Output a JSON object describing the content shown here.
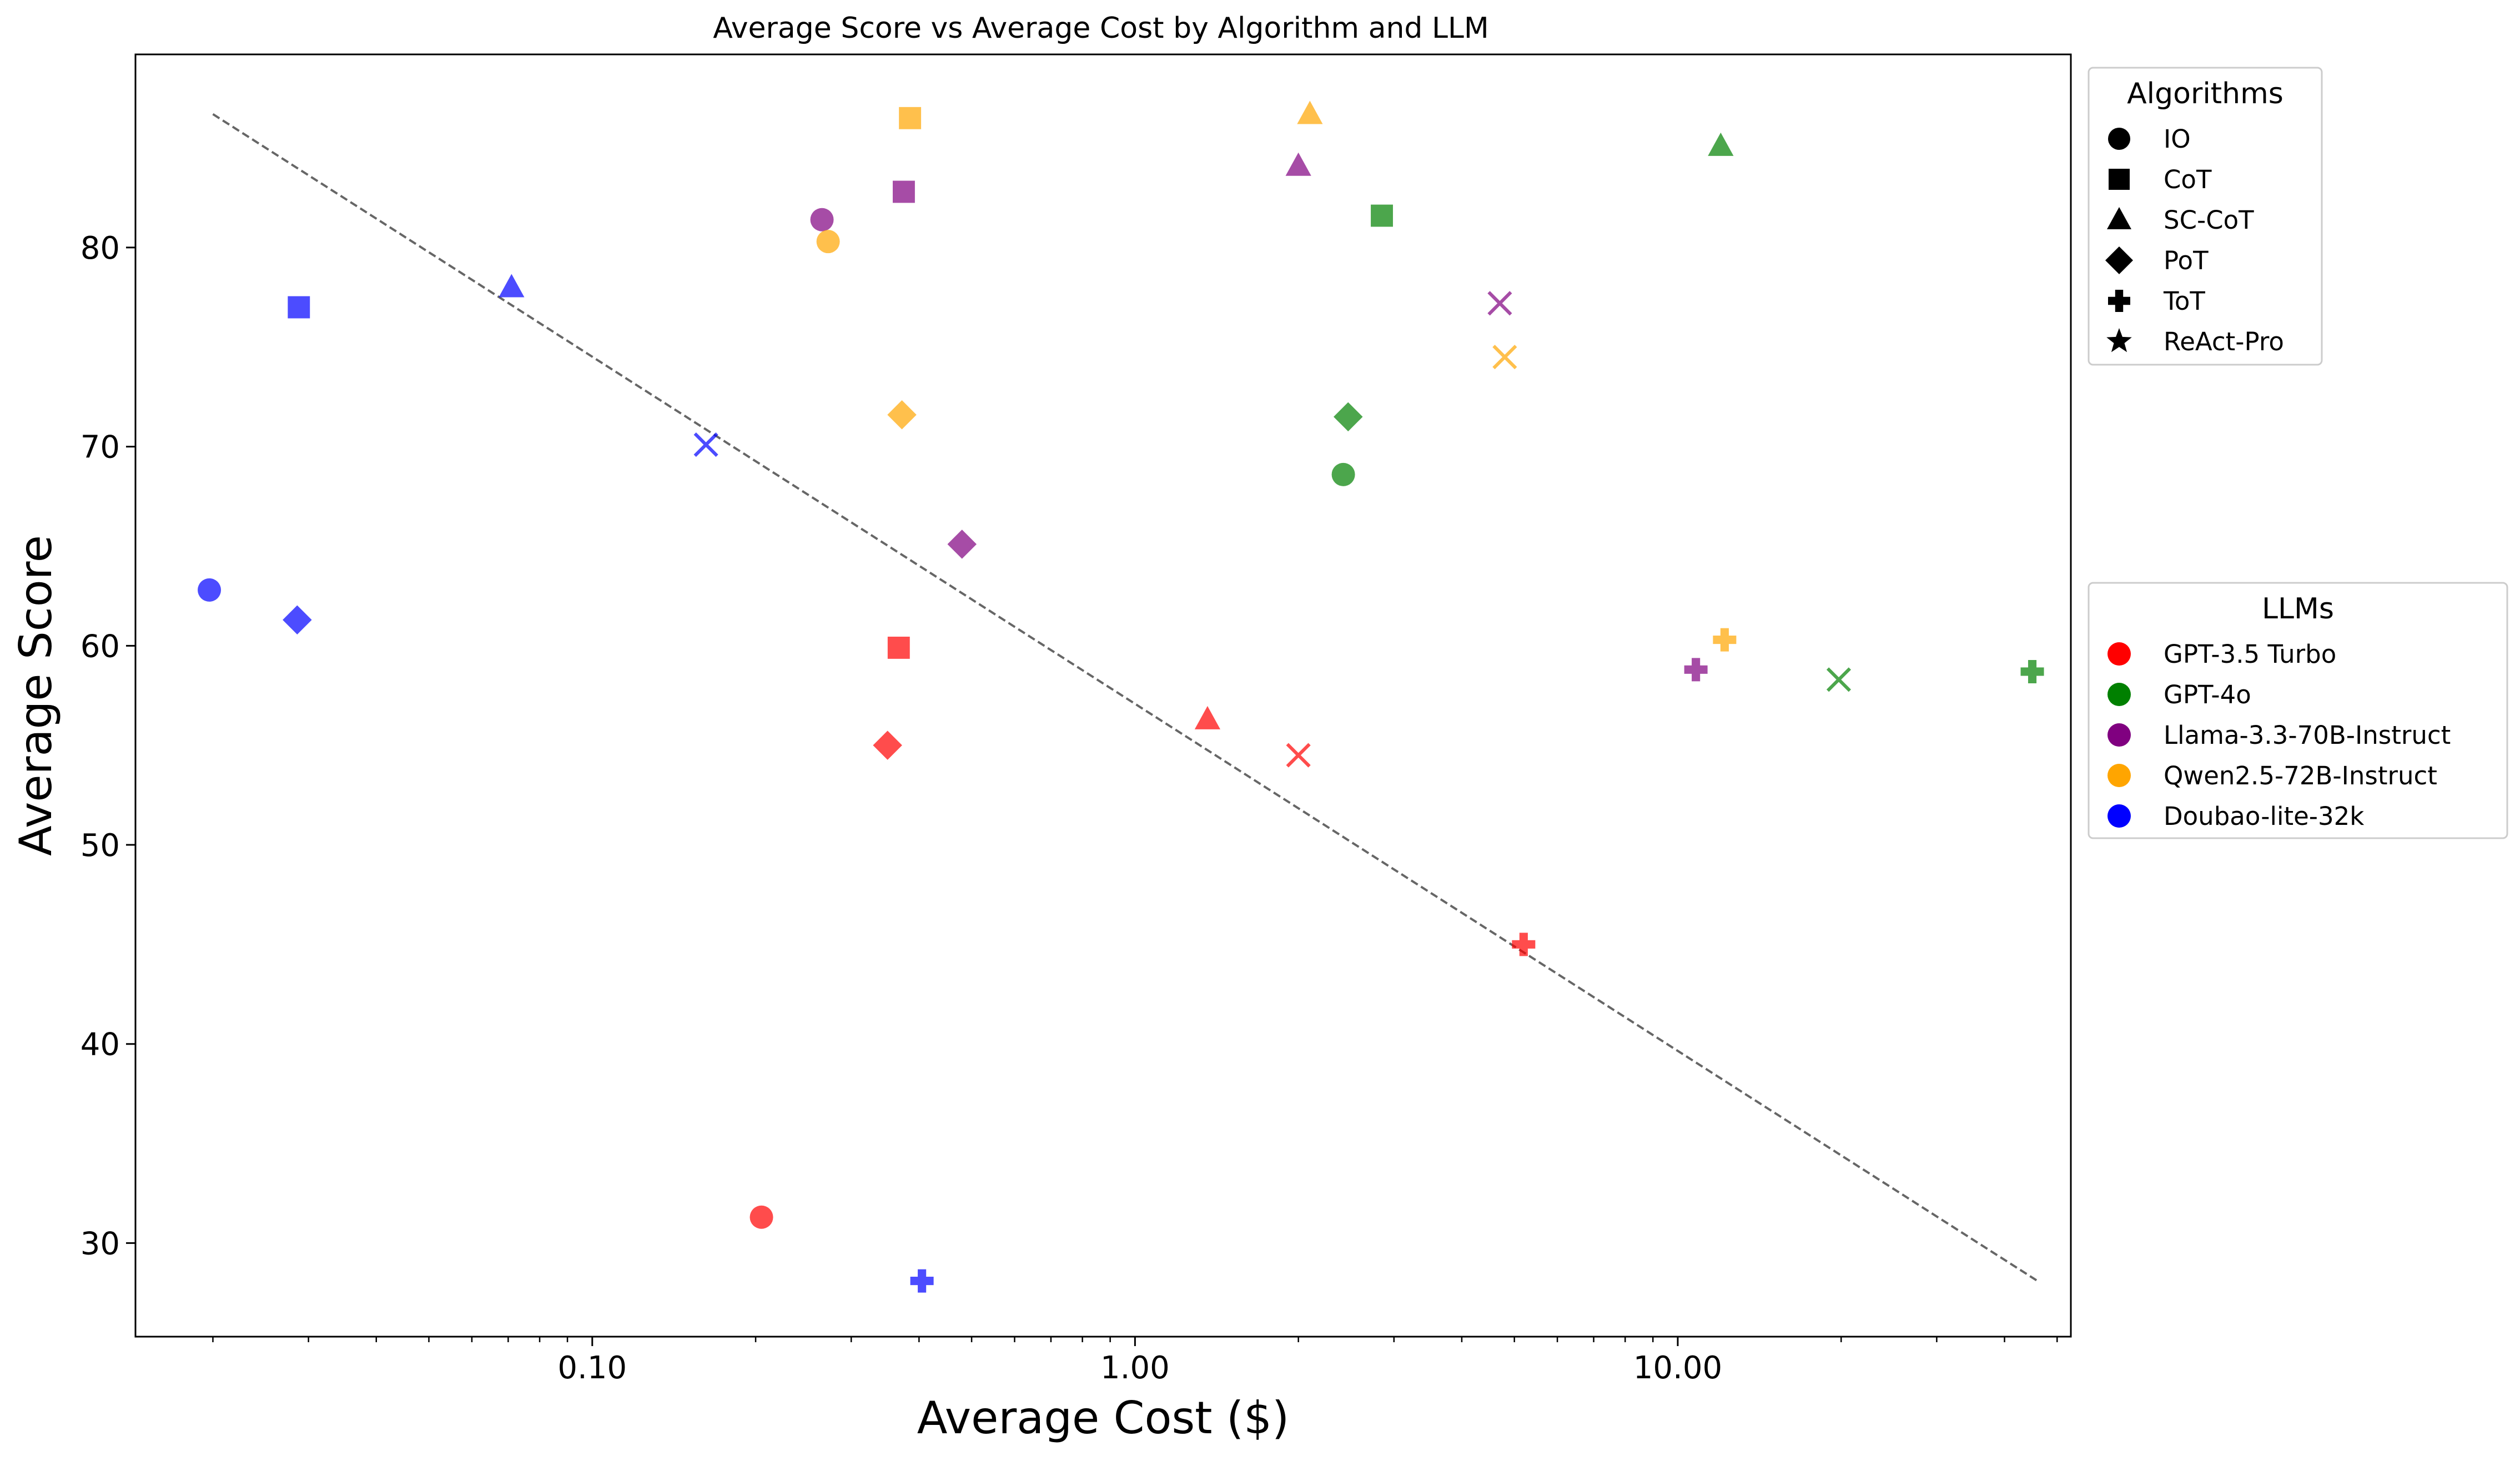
{
  "chart_data": {
    "type": "scatter",
    "title": "Average Score vs Average Cost by Algorithm and LLM",
    "xlabel": "Average Cost ($)",
    "ylabel": "Average Score",
    "xscale": "log",
    "xlim": [
      0.0144,
      53
    ],
    "ylim": [
      25.3,
      89.7
    ],
    "xticks": [
      {
        "value": 0.1,
        "label": "0.10"
      },
      {
        "value": 1,
        "label": "1.00"
      },
      {
        "value": 10,
        "label": "10.00"
      }
    ],
    "yticks": [
      30,
      40,
      50,
      60,
      70,
      80
    ],
    "grid": false,
    "legends": {
      "algorithms": {
        "title": "Algorithms",
        "placement": "top-right outside plot",
        "entries": [
          {
            "label": "IO",
            "marker": "circle"
          },
          {
            "label": "CoT",
            "marker": "square"
          },
          {
            "label": "SC-CoT",
            "marker": "triangle"
          },
          {
            "label": "PoT",
            "marker": "diamond"
          },
          {
            "label": "ToT",
            "marker": "plus"
          },
          {
            "label": "ReAct-Pro",
            "marker": "star"
          }
        ]
      },
      "llms": {
        "title": "LLMs",
        "placement": "middle-right outside plot",
        "entries": [
          {
            "label": "GPT-3.5 Turbo",
            "color": "#ff0000"
          },
          {
            "label": "GPT-4o",
            "color": "#008000"
          },
          {
            "label": "Llama-3.3-70B-Instruct",
            "color": "#800080"
          },
          {
            "label": "Qwen2.5-72B-Instruct",
            "color": "#ffa500"
          },
          {
            "label": "Doubao-lite-32k",
            "color": "#0000ff"
          }
        ]
      }
    },
    "trendline": {
      "style": "dashed",
      "color": "#666666",
      "points": [
        [
          0.02,
          86.7
        ],
        [
          46,
          28.1
        ]
      ]
    },
    "series": [
      {
        "llm": "GPT-3.5 Turbo",
        "color": "#ff0000",
        "points": [
          {
            "algorithm": "IO",
            "marker": "circle",
            "x": 0.205,
            "y": 31.3
          },
          {
            "algorithm": "CoT",
            "marker": "square",
            "x": 0.367,
            "y": 59.9
          },
          {
            "algorithm": "SC-CoT",
            "marker": "triangle",
            "x": 1.36,
            "y": 56.3
          },
          {
            "algorithm": "PoT",
            "marker": "diamond",
            "x": 0.35,
            "y": 55.0
          },
          {
            "algorithm": "ToT",
            "marker": "plus",
            "x": 5.2,
            "y": 45.0
          },
          {
            "algorithm": "ReAct-Pro",
            "marker": "x",
            "x": 2.0,
            "y": 54.5
          }
        ]
      },
      {
        "llm": "GPT-4o",
        "color": "#008000",
        "points": [
          {
            "algorithm": "IO",
            "marker": "circle",
            "x": 2.42,
            "y": 68.6
          },
          {
            "algorithm": "CoT",
            "marker": "square",
            "x": 2.85,
            "y": 81.6
          },
          {
            "algorithm": "SC-CoT",
            "marker": "triangle",
            "x": 12.0,
            "y": 85.1
          },
          {
            "algorithm": "PoT",
            "marker": "diamond",
            "x": 2.47,
            "y": 71.5
          },
          {
            "algorithm": "ToT",
            "marker": "plus",
            "x": 45.0,
            "y": 58.7
          },
          {
            "algorithm": "ReAct-Pro",
            "marker": "x",
            "x": 19.8,
            "y": 58.3
          }
        ]
      },
      {
        "llm": "Llama-3.3-70B-Instruct",
        "color": "#800080",
        "points": [
          {
            "algorithm": "IO",
            "marker": "circle",
            "x": 0.265,
            "y": 81.4
          },
          {
            "algorithm": "CoT",
            "marker": "square",
            "x": 0.375,
            "y": 82.8
          },
          {
            "algorithm": "SC-CoT",
            "marker": "triangle",
            "x": 2.0,
            "y": 84.1
          },
          {
            "algorithm": "PoT",
            "marker": "diamond",
            "x": 0.48,
            "y": 65.1
          },
          {
            "algorithm": "ToT",
            "marker": "plus",
            "x": 10.8,
            "y": 58.8
          },
          {
            "algorithm": "ReAct-Pro",
            "marker": "x",
            "x": 4.7,
            "y": 77.2
          }
        ]
      },
      {
        "llm": "Qwen2.5-72B-Instruct",
        "color": "#ffa500",
        "points": [
          {
            "algorithm": "IO",
            "marker": "circle",
            "x": 0.272,
            "y": 80.3
          },
          {
            "algorithm": "CoT",
            "marker": "square",
            "x": 0.385,
            "y": 86.5
          },
          {
            "algorithm": "SC-CoT",
            "marker": "triangle",
            "x": 2.1,
            "y": 86.7
          },
          {
            "algorithm": "PoT",
            "marker": "diamond",
            "x": 0.372,
            "y": 71.6
          },
          {
            "algorithm": "ToT",
            "marker": "plus",
            "x": 12.2,
            "y": 60.3
          },
          {
            "algorithm": "ReAct-Pro",
            "marker": "x",
            "x": 4.8,
            "y": 74.5
          }
        ]
      },
      {
        "llm": "Doubao-lite-32k",
        "color": "#0000ff",
        "points": [
          {
            "algorithm": "IO",
            "marker": "circle",
            "x": 0.0197,
            "y": 62.8
          },
          {
            "algorithm": "CoT",
            "marker": "square",
            "x": 0.0288,
            "y": 77.0
          },
          {
            "algorithm": "SC-CoT",
            "marker": "triangle",
            "x": 0.071,
            "y": 78.0
          },
          {
            "algorithm": "PoT",
            "marker": "diamond",
            "x": 0.0286,
            "y": 61.3
          },
          {
            "algorithm": "ToT",
            "marker": "plus",
            "x": 0.405,
            "y": 28.1
          },
          {
            "algorithm": "ReAct-Pro",
            "marker": "x",
            "x": 0.162,
            "y": 70.1
          }
        ]
      }
    ]
  }
}
